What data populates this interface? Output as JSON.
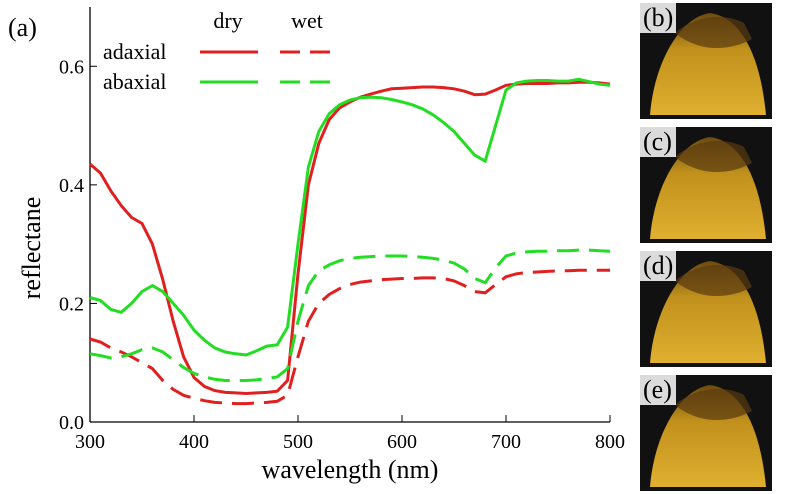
{
  "chart_data": {
    "type": "line",
    "panel_label": "(a)",
    "xlabel": "wavelength (nm)",
    "ylabel": "reflectane",
    "xlim": [
      300,
      800
    ],
    "xticks": [
      300,
      400,
      500,
      600,
      700,
      800
    ],
    "ylim": [
      0,
      0.7
    ],
    "yticks": [
      {
        "value": 0,
        "label": "0.0"
      },
      0.2,
      0.4,
      0.6
    ],
    "legend": {
      "columns": [
        "dry",
        "wet"
      ],
      "rows": [
        "adaxial",
        "abaxial"
      ]
    },
    "x": [
      300,
      310,
      320,
      330,
      340,
      350,
      360,
      370,
      380,
      390,
      400,
      410,
      420,
      430,
      440,
      450,
      460,
      470,
      480,
      490,
      500,
      510,
      520,
      530,
      540,
      550,
      560,
      570,
      580,
      590,
      600,
      610,
      620,
      630,
      640,
      650,
      660,
      670,
      680,
      690,
      700,
      710,
      720,
      730,
      740,
      750,
      760,
      770,
      780,
      790,
      800
    ],
    "series": [
      {
        "color": "#e02020",
        "dashed": false,
        "values": [
          0.435,
          0.42,
          0.39,
          0.365,
          0.345,
          0.335,
          0.3,
          0.24,
          0.17,
          0.11,
          0.075,
          0.06,
          0.053,
          0.05,
          0.049,
          0.048,
          0.049,
          0.05,
          0.052,
          0.07,
          0.25,
          0.4,
          0.47,
          0.51,
          0.53,
          0.54,
          0.548,
          0.553,
          0.558,
          0.562,
          0.563,
          0.564,
          0.565,
          0.565,
          0.564,
          0.562,
          0.558,
          0.552,
          0.553,
          0.56,
          0.568,
          0.57,
          0.571,
          0.571,
          0.571,
          0.572,
          0.572,
          0.573,
          0.573,
          0.572,
          0.57
        ]
      },
      {
        "color": "#e02020",
        "dashed": true,
        "values": [
          0.14,
          0.135,
          0.125,
          0.118,
          0.11,
          0.1,
          0.09,
          0.07,
          0.055,
          0.045,
          0.04,
          0.036,
          0.033,
          0.032,
          0.031,
          0.031,
          0.032,
          0.033,
          0.035,
          0.045,
          0.11,
          0.17,
          0.2,
          0.215,
          0.225,
          0.232,
          0.236,
          0.238,
          0.24,
          0.241,
          0.242,
          0.242,
          0.243,
          0.243,
          0.242,
          0.238,
          0.23,
          0.22,
          0.218,
          0.232,
          0.245,
          0.25,
          0.252,
          0.253,
          0.254,
          0.255,
          0.255,
          0.256,
          0.256,
          0.256,
          0.256
        ]
      },
      {
        "color": "#22dd22",
        "dashed": false,
        "values": [
          0.21,
          0.205,
          0.19,
          0.185,
          0.2,
          0.22,
          0.23,
          0.22,
          0.2,
          0.18,
          0.155,
          0.138,
          0.125,
          0.118,
          0.115,
          0.113,
          0.12,
          0.128,
          0.13,
          0.16,
          0.3,
          0.43,
          0.49,
          0.52,
          0.535,
          0.543,
          0.547,
          0.548,
          0.547,
          0.544,
          0.54,
          0.535,
          0.528,
          0.518,
          0.505,
          0.49,
          0.47,
          0.45,
          0.44,
          0.5,
          0.56,
          0.572,
          0.575,
          0.576,
          0.576,
          0.575,
          0.575,
          0.578,
          0.574,
          0.57,
          0.568
        ]
      },
      {
        "color": "#22dd22",
        "dashed": true,
        "values": [
          0.115,
          0.112,
          0.108,
          0.11,
          0.115,
          0.122,
          0.125,
          0.118,
          0.105,
          0.092,
          0.082,
          0.076,
          0.072,
          0.07,
          0.07,
          0.07,
          0.071,
          0.073,
          0.076,
          0.09,
          0.17,
          0.23,
          0.255,
          0.265,
          0.272,
          0.276,
          0.278,
          0.279,
          0.28,
          0.28,
          0.28,
          0.279,
          0.278,
          0.276,
          0.273,
          0.268,
          0.258,
          0.242,
          0.235,
          0.26,
          0.28,
          0.285,
          0.287,
          0.288,
          0.288,
          0.289,
          0.289,
          0.29,
          0.29,
          0.289,
          0.288
        ]
      }
    ]
  },
  "photos": [
    "(b)",
    "(c)",
    "(d)",
    "(e)"
  ]
}
